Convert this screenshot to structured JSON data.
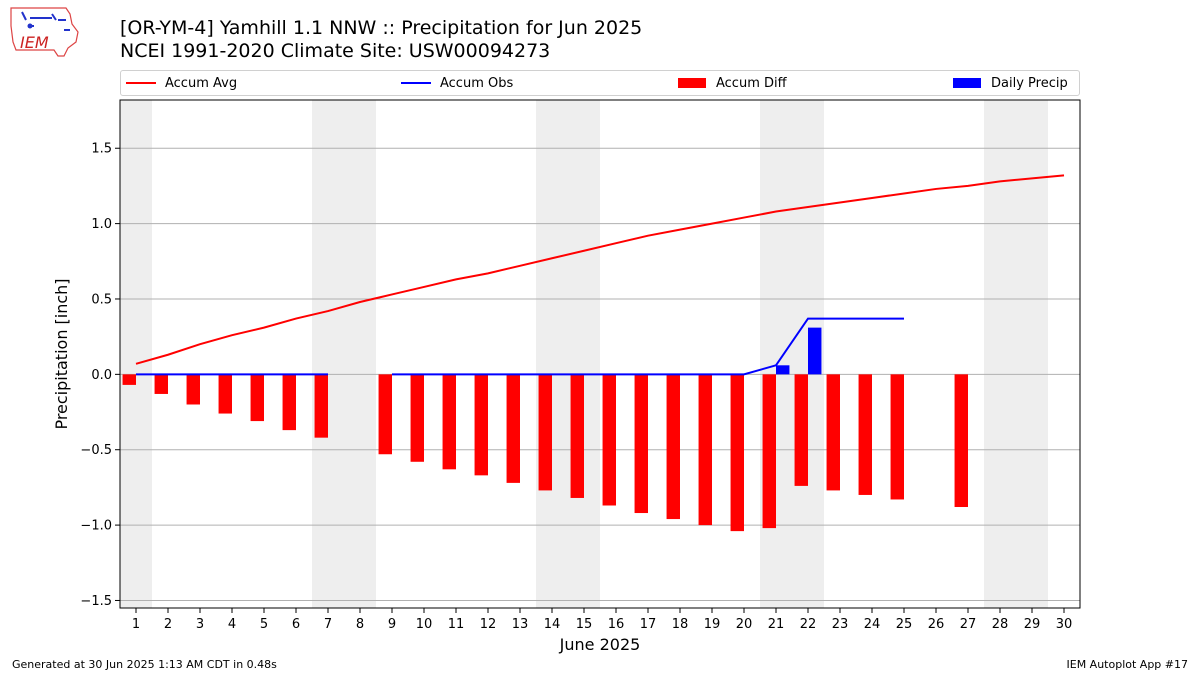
{
  "header": {
    "title_line1": "[OR-YM-4] Yamhill 1.1 NNW :: Precipitation for Jun 2025",
    "title_line2": "NCEI 1991-2020 Climate Site: USW00094273",
    "logo_text": "IEM"
  },
  "footer": {
    "left": "Generated at 30 Jun 2025 1:13 AM CDT in 0.48s",
    "right": "IEM Autoplot App #17"
  },
  "colors": {
    "avg": "#ff0000",
    "obs": "#0000ff",
    "diff": "#ff0000",
    "daily": "#0000ff",
    "weekend_shade": "#eeeeee",
    "grid": "#b0b0b0"
  },
  "chart_data": {
    "type": "bar",
    "xlabel": "June 2025",
    "ylabel": "Precipitation [inch]",
    "ylim": [
      -1.55,
      1.82
    ],
    "yticks": [
      -1.5,
      -1.0,
      -0.5,
      0.0,
      0.5,
      1.0,
      1.5
    ],
    "ytick_labels": [
      "−1.5",
      "−1.0",
      "−0.5",
      "0.0",
      "0.5",
      "1.0",
      "1.5"
    ],
    "x": [
      1,
      2,
      3,
      4,
      5,
      6,
      7,
      8,
      9,
      10,
      11,
      12,
      13,
      14,
      15,
      16,
      17,
      18,
      19,
      20,
      21,
      22,
      23,
      24,
      25,
      26,
      27,
      28,
      29,
      30
    ],
    "grid": "horizontal",
    "legend_position": "top",
    "weekend_days": [
      1,
      7,
      8,
      14,
      15,
      21,
      22,
      28,
      29
    ],
    "series": [
      {
        "name": "Accum Avg",
        "kind": "line",
        "x": [
          1,
          2,
          3,
          4,
          5,
          6,
          7,
          8,
          9,
          10,
          11,
          12,
          13,
          14,
          15,
          16,
          17,
          18,
          19,
          20,
          21,
          22,
          23,
          24,
          25,
          26,
          27,
          28,
          29,
          30
        ],
        "values": [
          0.07,
          0.13,
          0.2,
          0.26,
          0.31,
          0.37,
          0.42,
          0.48,
          0.53,
          0.58,
          0.63,
          0.67,
          0.72,
          0.77,
          0.82,
          0.87,
          0.92,
          0.96,
          1.0,
          1.04,
          1.08,
          1.11,
          1.14,
          1.17,
          1.2,
          1.23,
          1.25,
          1.28,
          1.3,
          1.32
        ]
      },
      {
        "name": "Accum Obs",
        "kind": "line",
        "segments": [
          {
            "x": [
              1,
              2,
              3,
              4,
              5,
              6,
              7
            ],
            "values": [
              0,
              0,
              0,
              0,
              0,
              0,
              0
            ]
          },
          {
            "x": [
              9,
              10,
              11,
              12,
              13,
              14,
              15,
              16,
              17,
              18,
              19,
              20,
              21,
              22,
              23,
              24,
              25
            ],
            "values": [
              0,
              0,
              0,
              0,
              0,
              0,
              0,
              0,
              0,
              0,
              0,
              0,
              0.06,
              0.37,
              0.37,
              0.37,
              0.37
            ]
          }
        ]
      },
      {
        "name": "Accum Diff",
        "kind": "bar",
        "x": [
          1,
          2,
          3,
          4,
          5,
          6,
          7,
          9,
          10,
          11,
          12,
          13,
          14,
          15,
          16,
          17,
          18,
          19,
          20,
          21,
          22,
          23,
          24,
          25,
          27
        ],
        "values": [
          -0.07,
          -0.13,
          -0.2,
          -0.26,
          -0.31,
          -0.37,
          -0.42,
          -0.53,
          -0.58,
          -0.63,
          -0.67,
          -0.72,
          -0.77,
          -0.82,
          -0.87,
          -0.92,
          -0.96,
          -1.0,
          -1.04,
          -1.02,
          -0.74,
          -0.77,
          -0.8,
          -0.83,
          -0.88
        ]
      },
      {
        "name": "Daily Precip",
        "kind": "bar",
        "x": [
          21,
          22
        ],
        "values": [
          0.06,
          0.31
        ]
      }
    ]
  }
}
